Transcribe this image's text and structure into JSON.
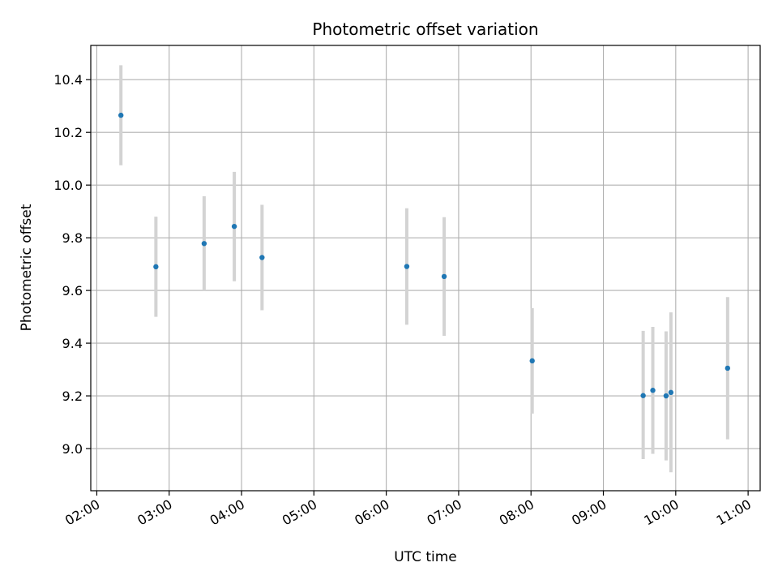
{
  "chart_data": {
    "type": "scatter",
    "title": "Photometric offset variation",
    "xlabel": "UTC time",
    "ylabel": "Photometric offset",
    "grid": true,
    "xlim": [
      "01:55",
      "11:10"
    ],
    "ylim": [
      8.84,
      10.53
    ],
    "x_ticks": [
      "02:00",
      "03:00",
      "04:00",
      "05:00",
      "06:00",
      "07:00",
      "08:00",
      "09:00",
      "10:00",
      "11:00"
    ],
    "y_ticks": [
      "9.0",
      "9.2",
      "9.4",
      "9.6",
      "9.8",
      "10.0",
      "10.2",
      "10.4"
    ],
    "colors": {
      "point": "#1f77b4",
      "errorbar": "#d3d3d3",
      "grid": "#b0b0b0"
    },
    "series": [
      {
        "x": [
          "02:20",
          "02:49",
          "03:29",
          "03:54",
          "04:17",
          "06:17",
          "06:48",
          "08:01",
          "09:33",
          "09:41",
          "09:52",
          "09:56",
          "10:43"
        ],
        "y": [
          10.265,
          9.69,
          9.778,
          9.843,
          9.725,
          9.691,
          9.653,
          9.333,
          9.201,
          9.221,
          9.2,
          9.213,
          9.305
        ],
        "y_lower": [
          10.075,
          9.5,
          9.6,
          9.635,
          9.525,
          9.47,
          9.428,
          9.133,
          8.96,
          8.98,
          8.955,
          8.91,
          9.035
        ],
        "y_upper": [
          10.455,
          9.88,
          9.958,
          10.05,
          9.925,
          9.912,
          9.878,
          9.533,
          9.447,
          9.462,
          9.445,
          9.517,
          9.575
        ]
      }
    ]
  }
}
